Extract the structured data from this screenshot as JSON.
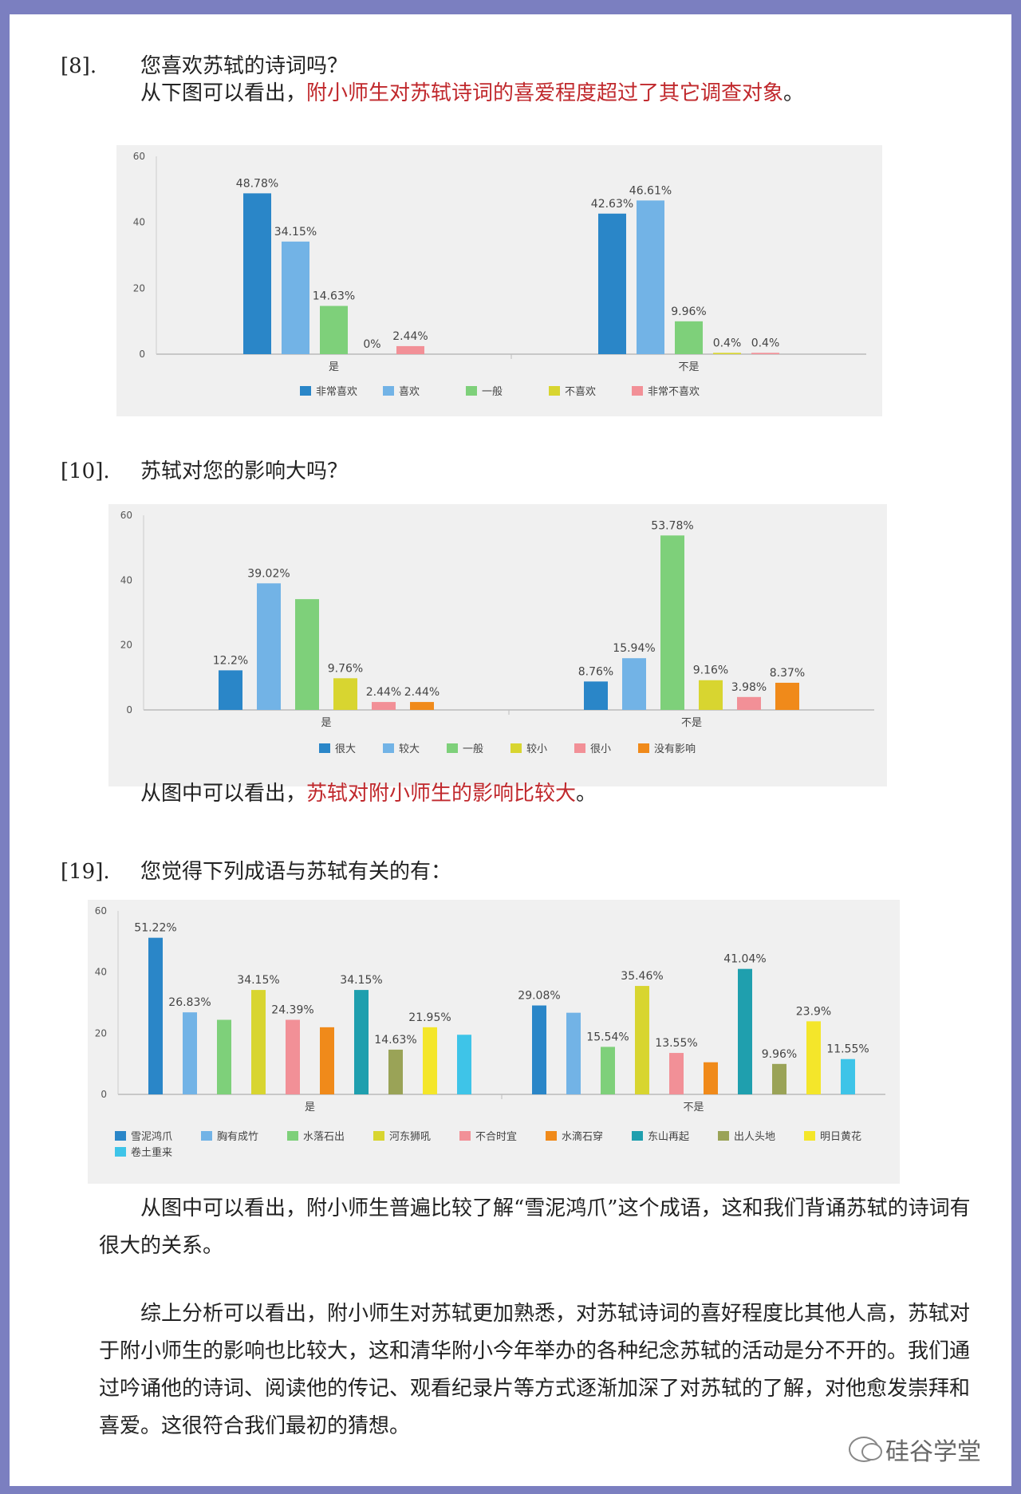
{
  "q8": {
    "num": "[8].",
    "text": "您喜欢苏轼的诗词吗？"
  },
  "p1": {
    "pre": "从下图可以看出，",
    "red": "附小师生对苏轼诗词的喜爱程度超过了其它调查对象",
    "post": "。"
  },
  "q10": {
    "num": "[10].",
    "text": "苏轼对您的影响大吗？"
  },
  "p2": {
    "pre": "从图中可以看出，",
    "red": "苏轼对附小师生的影响比较大",
    "post": "。"
  },
  "q19": {
    "num": "[19].",
    "text": "您觉得下列成语与苏轼有关的有："
  },
  "p3": "从图中可以看出，附小师生普遍比较了解“雪泥鸿爪”这个成语，这和我们背诵苏轼的诗词有很大的关系。",
  "p4": "综上分析可以看出，附小师生对苏轼更加熟悉，对苏轼诗词的喜好程度比其他人高，苏轼对于附小师生的影响也比较大，这和清华附小今年举办的各种纪念苏轼的活动是分不开的。我们通过吟诵他的诗词、阅读他的传记、观看纪录片等方式逐渐加深了对苏轼的了解，对他愈发崇拜和喜爱。这很符合我们最初的猜想。",
  "watermark": "硅谷学堂",
  "chart_data": [
    {
      "type": "bar",
      "categories": [
        "是",
        "不是"
      ],
      "ylim": [
        0,
        60
      ],
      "yticks": [
        0,
        20,
        40,
        60
      ],
      "legend_position": "bottom",
      "series": [
        {
          "name": "非常喜欢",
          "color": "#2a86c8",
          "values": [
            48.78,
            42.63
          ],
          "labels": [
            "48.78%",
            "42.63%"
          ]
        },
        {
          "name": "喜欢",
          "color": "#72b3e6",
          "values": [
            34.15,
            46.61
          ],
          "labels": [
            "34.15%",
            "46.61%"
          ]
        },
        {
          "name": "一般",
          "color": "#7ed07a",
          "values": [
            14.63,
            9.96
          ],
          "labels": [
            "14.63%",
            "9.96%"
          ]
        },
        {
          "name": "不喜欢",
          "color": "#d8d530",
          "values": [
            0,
            0.4
          ],
          "labels": [
            "0%",
            "0.4%"
          ]
        },
        {
          "name": "非常不喜欢",
          "color": "#f29097",
          "values": [
            2.44,
            0.4
          ],
          "labels": [
            "2.44%",
            "0.4%"
          ]
        }
      ]
    },
    {
      "type": "bar",
      "categories": [
        "是",
        "不是"
      ],
      "ylim": [
        0,
        60
      ],
      "yticks": [
        0,
        20,
        40,
        60
      ],
      "legend_position": "bottom",
      "series": [
        {
          "name": "很大",
          "color": "#2a86c8",
          "values": [
            12.2,
            8.76
          ],
          "labels": [
            "12.2%",
            "8.76%"
          ]
        },
        {
          "name": "较大",
          "color": "#72b3e6",
          "values": [
            39.02,
            15.94
          ],
          "labels": [
            "39.02%",
            "15.94%"
          ]
        },
        {
          "name": "一般",
          "color": "#7ed07a",
          "values": [
            34.15,
            53.78
          ],
          "labels": [
            "",
            "53.78%"
          ]
        },
        {
          "name": "较小",
          "color": "#d8d530",
          "values": [
            9.76,
            9.16
          ],
          "labels": [
            "9.76%",
            "9.16%"
          ]
        },
        {
          "name": "很小",
          "color": "#f29097",
          "values": [
            2.44,
            3.98
          ],
          "labels": [
            "2.44%",
            "3.98%"
          ]
        },
        {
          "name": "没有影响",
          "color": "#f08a1a",
          "values": [
            2.44,
            8.37
          ],
          "labels": [
            "2.44%",
            "8.37%"
          ]
        }
      ]
    },
    {
      "type": "bar",
      "categories": [
        "是",
        "不是"
      ],
      "ylim": [
        0,
        60
      ],
      "yticks": [
        0,
        20,
        40,
        60
      ],
      "legend_position": "bottom",
      "series": [
        {
          "name": "雪泥鸿爪",
          "color": "#2a86c8",
          "values": [
            51.22,
            29.08
          ],
          "labels": [
            "51.22%",
            "29.08%"
          ]
        },
        {
          "name": "胸有成竹",
          "color": "#72b3e6",
          "values": [
            26.83,
            26.7
          ],
          "labels": [
            "26.83%",
            ""
          ]
        },
        {
          "name": "水落石出",
          "color": "#7ed07a",
          "values": [
            24.39,
            15.54
          ],
          "labels": [
            "",
            "15.54%"
          ]
        },
        {
          "name": "河东狮吼",
          "color": "#d8d530",
          "values": [
            34.15,
            35.46
          ],
          "labels": [
            "34.15%",
            "35.46%"
          ]
        },
        {
          "name": "不合时宜",
          "color": "#f29097",
          "values": [
            24.39,
            13.55
          ],
          "labels": [
            "24.39%",
            "13.55%"
          ]
        },
        {
          "name": "水滴石穿",
          "color": "#f08a1a",
          "values": [
            21.95,
            10.5
          ],
          "labels": [
            "",
            ""
          ]
        },
        {
          "name": "东山再起",
          "color": "#1f9fae",
          "values": [
            34.15,
            41.04
          ],
          "labels": [
            "34.15%",
            "41.04%"
          ]
        },
        {
          "name": "出人头地",
          "color": "#9aa357",
          "values": [
            14.63,
            9.96
          ],
          "labels": [
            "14.63%",
            "9.96%"
          ]
        },
        {
          "name": "明日黄花",
          "color": "#f4e62a",
          "values": [
            21.95,
            23.9
          ],
          "labels": [
            "21.95%",
            "23.9%"
          ]
        },
        {
          "name": "卷土重来",
          "color": "#3ec4e8",
          "values": [
            19.5,
            11.55
          ],
          "labels": [
            "",
            "11.55%"
          ]
        }
      ]
    }
  ]
}
